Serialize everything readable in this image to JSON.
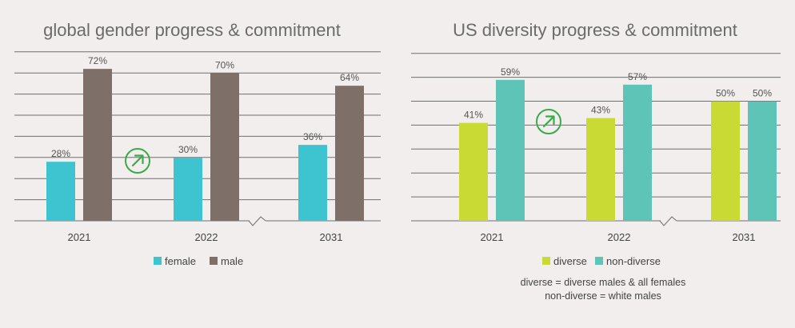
{
  "colors": {
    "female": "#3ec3d1",
    "male": "#7e6f69",
    "diverse": "#c8da33",
    "non_diverse": "#5ec4b8",
    "arrow": "#3aab4a"
  },
  "icons": {
    "progress": "arrow-up-right-circle-icon"
  },
  "chart_data": [
    {
      "type": "bar",
      "title": "global gender progress & commitment",
      "categories": [
        "2021",
        "2022",
        "2031"
      ],
      "series": [
        {
          "name": "female",
          "values": [
            28,
            30,
            36
          ],
          "labels": [
            "28%",
            "30%",
            "36%"
          ]
        },
        {
          "name": "male",
          "values": [
            72,
            70,
            64
          ],
          "labels": [
            "72%",
            "70%",
            "64%"
          ]
        }
      ],
      "ylim": [
        0,
        80
      ],
      "grid": true,
      "axis_break": true,
      "legend": "bottom"
    },
    {
      "type": "bar",
      "title": "US diversity progress & commitment",
      "categories": [
        "2021",
        "2022",
        "2031"
      ],
      "series": [
        {
          "name": "diverse",
          "values": [
            41,
            43,
            50
          ],
          "labels": [
            "41%",
            "43%",
            "50%"
          ]
        },
        {
          "name": "non-diverse",
          "values": [
            59,
            57,
            50
          ],
          "labels": [
            "59%",
            "57%",
            "50%"
          ]
        }
      ],
      "ylim": [
        0,
        70
      ],
      "grid": true,
      "axis_break": true,
      "legend": "bottom",
      "notes": [
        "diverse = diverse males & all females",
        "non-diverse = white males"
      ]
    }
  ]
}
